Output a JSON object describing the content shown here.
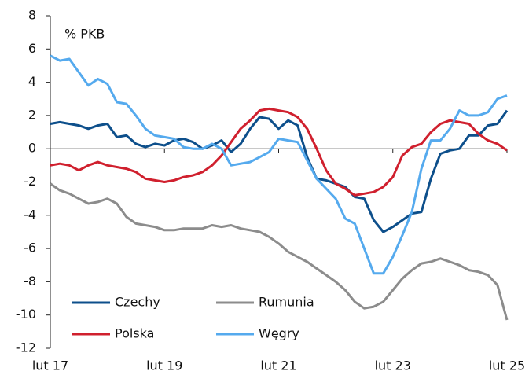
{
  "chart_data": {
    "type": "line",
    "annotation": "% PKB",
    "categories": [
      "lut 17",
      null,
      null,
      null,
      null,
      null,
      null,
      null,
      null,
      null,
      null,
      null,
      "lut 19",
      null,
      null,
      null,
      null,
      null,
      null,
      null,
      null,
      null,
      null,
      null,
      "lut 21",
      null,
      null,
      null,
      null,
      null,
      null,
      null,
      null,
      null,
      null,
      null,
      "lut 23",
      null,
      null,
      null,
      null,
      null,
      null,
      null,
      null,
      null,
      null,
      null,
      "lut 25"
    ],
    "ylim": [
      -12,
      8
    ],
    "yticks": [
      -12,
      -10,
      -8,
      -6,
      -4,
      -2,
      0,
      2,
      4,
      6,
      8
    ],
    "legend": "lower left",
    "series": [
      {
        "name": "Czechy",
        "color": "#0d4f8b",
        "values": [
          1.5,
          1.6,
          1.5,
          1.4,
          1.2,
          1.4,
          1.5,
          0.7,
          0.8,
          0.3,
          0.1,
          0.3,
          0.2,
          0.5,
          0.6,
          0.4,
          0.0,
          0.2,
          0.5,
          -0.2,
          0.3,
          1.2,
          1.9,
          1.8,
          1.2,
          1.7,
          1.4,
          -0.5,
          -1.8,
          -1.9,
          -2.1,
          -2.3,
          -2.9,
          -3.0,
          -4.3,
          -5.0,
          -4.7,
          -4.3,
          -3.9,
          -3.8,
          -1.8,
          -0.3,
          -0.1,
          0.0,
          0.8,
          0.8,
          1.4,
          1.5,
          2.3
        ]
      },
      {
        "name": "Rumunia",
        "color": "#8c8c8c",
        "values": [
          -2.1,
          -2.5,
          -2.7,
          -3.0,
          -3.3,
          -3.2,
          -3.0,
          -3.3,
          -4.1,
          -4.5,
          -4.6,
          -4.7,
          -4.9,
          -4.9,
          -4.8,
          -4.8,
          -4.8,
          -4.6,
          -4.7,
          -4.6,
          -4.8,
          -4.9,
          -5.0,
          -5.3,
          -5.7,
          -6.2,
          -6.5,
          -6.8,
          -7.2,
          -7.6,
          -8.0,
          -8.5,
          -9.2,
          -9.6,
          -9.5,
          -9.2,
          -8.5,
          -7.8,
          -7.3,
          -6.9,
          -6.8,
          -6.6,
          -6.8,
          -7.0,
          -7.3,
          -7.4,
          -7.6,
          -8.2,
          -10.3
        ]
      },
      {
        "name": "Polska",
        "color": "#d0202e",
        "values": [
          -1.0,
          -0.9,
          -1.0,
          -1.3,
          -1.0,
          -0.8,
          -1.0,
          -1.1,
          -1.2,
          -1.4,
          -1.8,
          -1.9,
          -2.0,
          -1.9,
          -1.7,
          -1.6,
          -1.4,
          -1.0,
          -0.4,
          0.4,
          1.2,
          1.7,
          2.3,
          2.4,
          2.3,
          2.2,
          1.9,
          1.2,
          0.0,
          -1.3,
          -2.1,
          -2.4,
          -2.8,
          -2.7,
          -2.6,
          -2.3,
          -1.7,
          -0.4,
          0.1,
          0.3,
          1.0,
          1.5,
          1.7,
          1.6,
          1.5,
          0.9,
          0.5,
          0.3,
          -0.1
        ]
      },
      {
        "name": "Węgry",
        "color": "#55aaee",
        "values": [
          5.6,
          5.3,
          5.4,
          4.6,
          3.8,
          4.2,
          3.9,
          2.8,
          2.7,
          2.0,
          1.2,
          0.8,
          0.7,
          0.6,
          0.1,
          0.0,
          0.0,
          0.3,
          0.0,
          -1.0,
          -0.9,
          -0.8,
          -0.5,
          -0.2,
          0.6,
          0.5,
          0.4,
          -0.7,
          -1.8,
          -2.4,
          -3.0,
          -4.2,
          -4.5,
          -6.0,
          -7.5,
          -7.5,
          -6.5,
          -5.2,
          -3.8,
          -1.2,
          0.5,
          0.5,
          1.2,
          2.3,
          2.0,
          2.0,
          2.2,
          3.0,
          3.2
        ]
      }
    ]
  }
}
